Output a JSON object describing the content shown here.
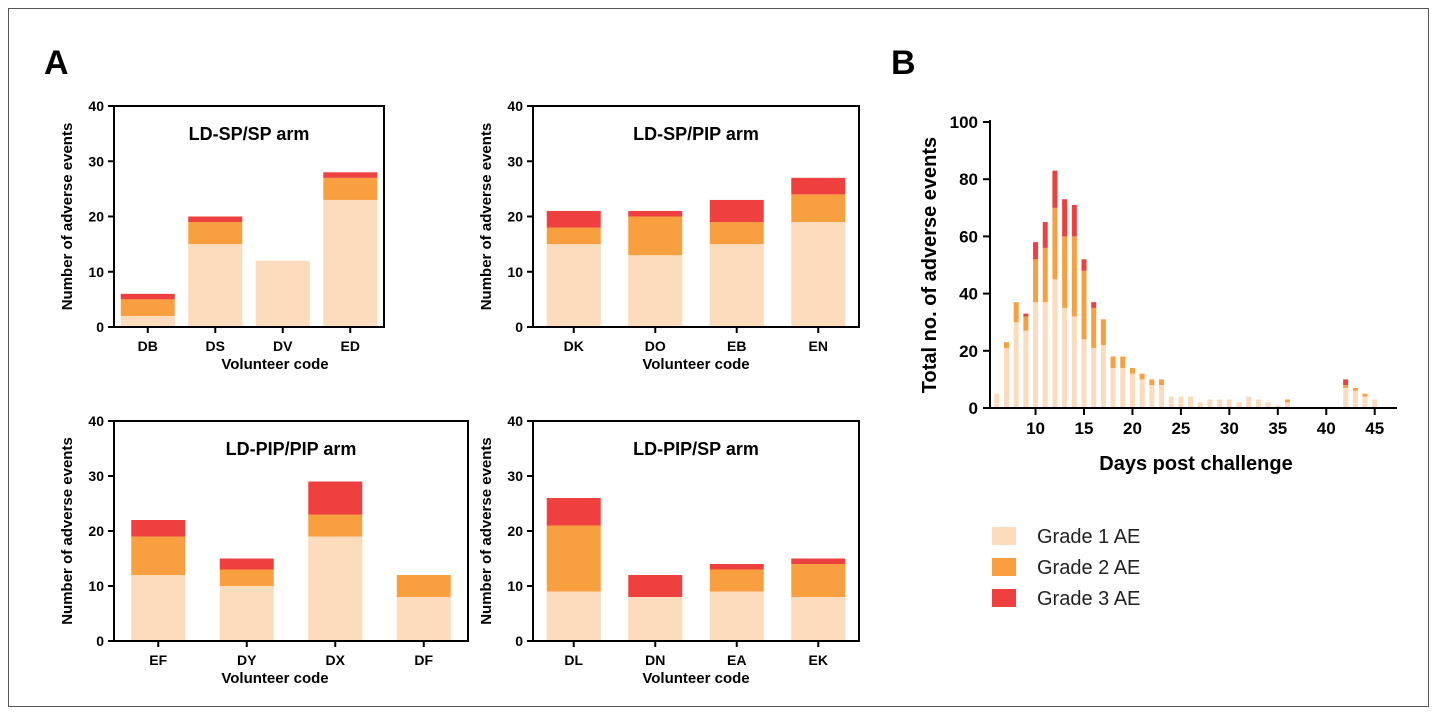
{
  "panels": {
    "a_label": "A",
    "b_label": "B"
  },
  "colors": {
    "grade1": "#FDDCBD",
    "grade2": "#F8A040",
    "grade3": "#EF4040"
  },
  "legend": [
    {
      "label": "Grade 1 AE",
      "color": "#FDDCBD"
    },
    {
      "label": "Grade 2 AE",
      "color": "#F8A040"
    },
    {
      "label": "Grade 3 AE",
      "color": "#EF4040"
    }
  ],
  "chart_data": [
    {
      "type": "bar",
      "stacked": true,
      "title": "LD-SP/SP arm",
      "xlabel": "Volunteer code",
      "ylabel": "Number of adverse events",
      "ylim": [
        0,
        40
      ],
      "yticks": [
        0,
        10,
        20,
        30,
        40
      ],
      "categories": [
        "DB",
        "DS",
        "DV",
        "ED"
      ],
      "series": [
        {
          "values": [
            2,
            15,
            12,
            23
          ]
        },
        {
          "values": [
            3,
            4,
            0,
            4
          ]
        },
        {
          "values": [
            1,
            1,
            0,
            1
          ]
        }
      ]
    },
    {
      "type": "bar",
      "stacked": true,
      "title": "LD-SP/PIP arm",
      "xlabel": "Volunteer code",
      "ylabel": "Number of adverse events",
      "ylim": [
        0,
        40
      ],
      "yticks": [
        0,
        10,
        20,
        30,
        40
      ],
      "categories": [
        "DK",
        "DO",
        "EB",
        "EN"
      ],
      "series": [
        {
          "values": [
            15,
            13,
            15,
            19
          ]
        },
        {
          "values": [
            3,
            7,
            4,
            5
          ]
        },
        {
          "values": [
            3,
            1,
            4,
            3
          ]
        }
      ]
    },
    {
      "type": "bar",
      "stacked": true,
      "title": "LD-PIP/PIP arm",
      "xlabel": "Volunteer code",
      "ylabel": "Number of adverse events",
      "ylim": [
        0,
        40
      ],
      "yticks": [
        0,
        10,
        20,
        30,
        40
      ],
      "categories": [
        "EF",
        "DY",
        "DX",
        "DF"
      ],
      "series": [
        {
          "values": [
            12,
            10,
            19,
            8
          ]
        },
        {
          "values": [
            7,
            3,
            4,
            4
          ]
        },
        {
          "values": [
            3,
            2,
            6,
            0
          ]
        }
      ]
    },
    {
      "type": "bar",
      "stacked": true,
      "title": "LD-PIP/SP arm",
      "xlabel": "Volunteer code",
      "ylabel": "Number of adverse events",
      "ylim": [
        0,
        40
      ],
      "yticks": [
        0,
        10,
        20,
        30,
        40
      ],
      "categories": [
        "DL",
        "DN",
        "EA",
        "EK"
      ],
      "series": [
        {
          "values": [
            9,
            8,
            9,
            8
          ]
        },
        {
          "values": [
            12,
            0,
            4,
            6
          ]
        },
        {
          "values": [
            5,
            4,
            1,
            1
          ]
        }
      ]
    },
    {
      "type": "bar",
      "stacked": true,
      "title": "",
      "xlabel": "Days post challenge",
      "ylabel": "Total no. of adverse events",
      "ylim": [
        0,
        100
      ],
      "yticks": [
        0,
        20,
        40,
        60,
        80,
        100
      ],
      "xticks": [
        10,
        15,
        20,
        25,
        30,
        35,
        40,
        45
      ],
      "xlim": [
        5.3,
        47.3
      ],
      "x": [
        6,
        7,
        8,
        9,
        10,
        11,
        12,
        13,
        14,
        15,
        16,
        17,
        18,
        19,
        20,
        21,
        22,
        23,
        24,
        25,
        26,
        27,
        28,
        29,
        30,
        31,
        32,
        33,
        34,
        35,
        36,
        37,
        38,
        39,
        40,
        41,
        42,
        43,
        44,
        45
      ],
      "series": [
        {
          "name": "Grade 1 AE",
          "values": [
            5,
            21,
            30,
            27,
            37,
            37,
            45,
            35,
            32,
            24,
            21,
            22,
            14,
            14,
            12,
            10,
            8,
            8,
            4,
            4,
            4,
            2,
            3,
            3,
            3,
            2,
            4,
            3,
            2,
            1,
            2,
            0,
            0,
            0,
            0,
            0,
            7,
            6,
            4,
            3
          ]
        },
        {
          "name": "Grade 2 AE",
          "values": [
            0,
            2,
            7,
            5,
            15,
            19,
            25,
            25,
            28,
            24,
            14,
            9,
            4,
            4,
            2,
            2,
            2,
            2,
            0,
            0,
            0,
            0,
            0,
            0,
            0,
            0,
            0,
            0,
            0,
            0,
            1,
            0,
            0,
            0,
            0,
            0,
            1,
            1,
            1,
            0
          ]
        },
        {
          "name": "Grade 3 AE",
          "values": [
            0,
            0,
            0,
            1,
            6,
            9,
            13,
            13,
            11,
            4,
            2,
            0,
            0,
            0,
            0,
            0,
            0,
            0,
            0,
            0,
            0,
            0,
            0,
            0,
            0,
            0,
            0,
            0,
            0,
            0,
            0,
            0,
            0,
            0,
            0,
            0,
            2,
            0,
            0,
            0
          ]
        }
      ]
    }
  ]
}
